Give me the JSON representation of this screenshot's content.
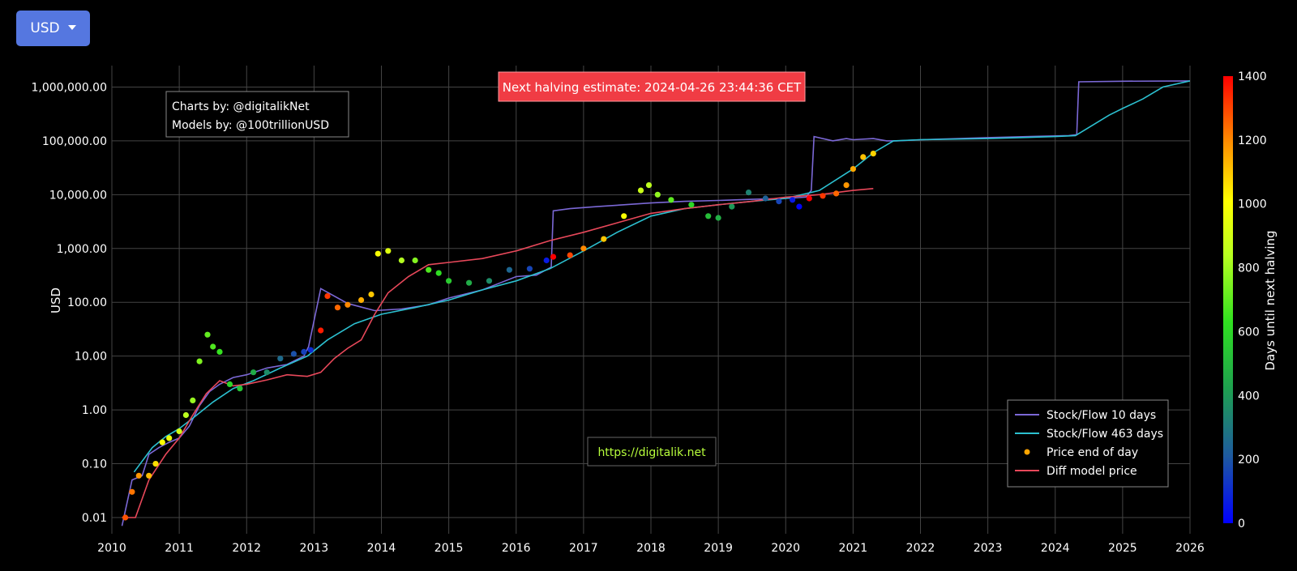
{
  "currency_button": {
    "label": "USD",
    "icon": "chevron-down-icon"
  },
  "colors": {
    "background": "#000000",
    "grid": "#444444",
    "button": "#5577e0",
    "halving_banner": "#f03c44",
    "stock_flow_10": "#7b68d6",
    "stock_flow_463": "#2cc0d0",
    "diff_model": "#e8485a",
    "price_marker": "#ffa500",
    "watermark_text": "#b8ff3c"
  },
  "chart_data": {
    "type": "scatter",
    "title": "",
    "xlabel": "",
    "ylabel": "USD",
    "xlim": [
      2010,
      2026
    ],
    "ylim": [
      0.005,
      2500000
    ],
    "y_scale": "log",
    "grid": true,
    "legend_position": "bottom-right",
    "x_ticks": [
      "2010",
      "2011",
      "2012",
      "2013",
      "2014",
      "2015",
      "2016",
      "2017",
      "2018",
      "2019",
      "2020",
      "2021",
      "2022",
      "2023",
      "2024",
      "2025",
      "2026"
    ],
    "y_ticks": [
      {
        "value": 0.01,
        "label": "0.01"
      },
      {
        "value": 0.1,
        "label": "0.10"
      },
      {
        "value": 1,
        "label": "1.00"
      },
      {
        "value": 10,
        "label": "10.00"
      },
      {
        "value": 100,
        "label": "100.00"
      },
      {
        "value": 1000,
        "label": "1,000.00"
      },
      {
        "value": 10000,
        "label": "10,000.00"
      },
      {
        "value": 100000,
        "label": "100,000.00"
      },
      {
        "value": 1000000,
        "label": "1,000,000.00"
      }
    ],
    "colorbar": {
      "title": "Days until next halving",
      "range": [
        0,
        1400
      ],
      "ticks": [
        "0",
        "200",
        "400",
        "600",
        "800",
        "1000",
        "1200",
        "1400"
      ]
    },
    "banner": "Next halving estimate: 2024-04-26 23:44:36 CET",
    "credits": [
      "Charts by: @digitalikNet",
      "Models by: @100trillionUSD"
    ],
    "watermark": "https://digitalik.net",
    "legend": [
      "Stock/Flow 10 days",
      "Stock/Flow 463 days",
      "Price end of day",
      "Diff model price"
    ],
    "series": [
      {
        "name": "Stock/Flow 10 days",
        "type": "line",
        "x": [
          2010.15,
          2010.3,
          2010.45,
          2010.55,
          2010.7,
          2010.85,
          2011.0,
          2011.15,
          2011.3,
          2011.45,
          2011.6,
          2011.8,
          2012.0,
          2012.3,
          2012.6,
          2012.85,
          2012.92,
          2013.1,
          2013.5,
          2013.9,
          2014.3,
          2014.7,
          2015.0,
          2015.5,
          2016.0,
          2016.3,
          2016.52,
          2016.55,
          2016.8,
          2017.2,
          2017.6,
          2018.0,
          2018.5,
          2019.0,
          2019.5,
          2020.0,
          2020.3,
          2020.38,
          2020.42,
          2020.7,
          2020.9,
          2021.0,
          2021.3,
          2021.5,
          2021.65,
          2022.0,
          2023.0,
          2024.2,
          2024.32,
          2024.35,
          2025.0,
          2026.0
        ],
        "y": [
          0.007,
          0.05,
          0.06,
          0.15,
          0.2,
          0.25,
          0.3,
          0.5,
          1.2,
          2.2,
          3,
          4,
          4.5,
          6,
          7,
          10,
          15,
          180,
          95,
          70,
          75,
          90,
          120,
          170,
          300,
          320,
          450,
          5000,
          5500,
          6000,
          6500,
          7000,
          7500,
          7800,
          8200,
          8500,
          9000,
          12000,
          120000,
          100000,
          110000,
          105000,
          110000,
          100000,
          100000,
          105000,
          115000,
          125000,
          130000,
          1250000,
          1280000,
          1300000
        ]
      },
      {
        "name": "Stock/Flow 463 days",
        "type": "line",
        "x": [
          2010.33,
          2010.6,
          2010.8,
          2011.0,
          2011.2,
          2011.5,
          2011.8,
          2012.1,
          2012.5,
          2012.9,
          2013.2,
          2013.6,
          2014.0,
          2014.5,
          2015.0,
          2015.5,
          2016.0,
          2016.5,
          2017.0,
          2017.5,
          2018.0,
          2018.5,
          2019.0,
          2019.5,
          2020.0,
          2020.5,
          2021.0,
          2021.3,
          2021.6,
          2022.0,
          2023.0,
          2024.0,
          2024.3,
          2024.8,
          2025.0,
          2025.3,
          2025.6,
          2026.0
        ],
        "y": [
          0.07,
          0.2,
          0.32,
          0.45,
          0.7,
          1.4,
          2.5,
          3.5,
          6,
          10,
          20,
          40,
          60,
          80,
          110,
          170,
          250,
          420,
          900,
          2000,
          4000,
          5500,
          6500,
          7500,
          8500,
          12000,
          30000,
          60000,
          100000,
          105000,
          110000,
          120000,
          125000,
          300000,
          400000,
          600000,
          1000000,
          1300000
        ]
      },
      {
        "name": "Diff model price",
        "type": "line",
        "x": [
          2010.15,
          2010.35,
          2010.55,
          2010.8,
          2011.0,
          2011.2,
          2011.4,
          2011.6,
          2011.8,
          2012.0,
          2012.3,
          2012.6,
          2012.9,
          2013.1,
          2013.3,
          2013.5,
          2013.7,
          2013.9,
          2014.1,
          2014.4,
          2014.7,
          2015.0,
          2015.5,
          2016.0,
          2016.5,
          2017.0,
          2017.5,
          2018.0,
          2018.5,
          2019.0,
          2019.5,
          2020.0,
          2020.5,
          2021.0,
          2021.3
        ],
        "y": [
          0.01,
          0.01,
          0.05,
          0.15,
          0.3,
          0.8,
          2,
          3.5,
          2.8,
          3,
          3.6,
          4.5,
          4.2,
          5,
          9,
          14,
          20,
          60,
          150,
          300,
          500,
          550,
          650,
          900,
          1400,
          2000,
          3000,
          4500,
          5500,
          6500,
          7500,
          9000,
          10000,
          12000,
          13000
        ]
      },
      {
        "name": "Price end of day",
        "type": "markers",
        "x": [
          2010.2,
          2010.3,
          2010.4,
          2010.55,
          2010.65,
          2010.75,
          2010.85,
          2011.0,
          2011.1,
          2011.2,
          2011.3,
          2011.42,
          2011.5,
          2011.6,
          2011.75,
          2011.9,
          2012.1,
          2012.3,
          2012.5,
          2012.7,
          2012.85,
          2012.95,
          2013.1,
          2013.2,
          2013.35,
          2013.5,
          2013.7,
          2013.85,
          2013.95,
          2014.1,
          2014.3,
          2014.5,
          2014.7,
          2014.85,
          2015.0,
          2015.3,
          2015.6,
          2015.9,
          2016.2,
          2016.45,
          2016.55,
          2016.8,
          2017.0,
          2017.3,
          2017.6,
          2017.85,
          2017.97,
          2018.1,
          2018.3,
          2018.6,
          2018.85,
          2019.0,
          2019.2,
          2019.45,
          2019.7,
          2019.9,
          2020.1,
          2020.2,
          2020.35,
          2020.55,
          2020.75,
          2020.9,
          2021.0,
          2021.15,
          2021.3
        ],
        "y": [
          0.01,
          0.03,
          0.06,
          0.06,
          0.1,
          0.25,
          0.3,
          0.4,
          0.8,
          1.5,
          8,
          25,
          15,
          12,
          3,
          2.5,
          5,
          5,
          9,
          11,
          12,
          13,
          30,
          130,
          80,
          90,
          110,
          140,
          800,
          900,
          600,
          600,
          400,
          350,
          250,
          230,
          250,
          400,
          420,
          600,
          700,
          750,
          1000,
          1500,
          4000,
          12000,
          15000,
          10000,
          8000,
          6500,
          4000,
          3700,
          6000,
          11000,
          8500,
          7500,
          8000,
          6000,
          8500,
          9500,
          10500,
          15000,
          30000,
          50000,
          58000
        ],
        "days": [
          1280,
          1230,
          1180,
          1120,
          1060,
          1010,
          960,
          900,
          850,
          790,
          750,
          710,
          680,
          640,
          590,
          540,
          460,
          360,
          260,
          190,
          150,
          100,
          1360,
          1320,
          1250,
          1200,
          1140,
          1100,
          990,
          930,
          830,
          760,
          680,
          620,
          560,
          460,
          360,
          250,
          160,
          60,
          1400,
          1300,
          1200,
          1100,
          1000,
          880,
          850,
          780,
          700,
          600,
          520,
          470,
          400,
          330,
          230,
          160,
          60,
          10,
          1420,
          1320,
          1250,
          1180,
          1150,
          1110,
          1080
        ]
      }
    ]
  }
}
